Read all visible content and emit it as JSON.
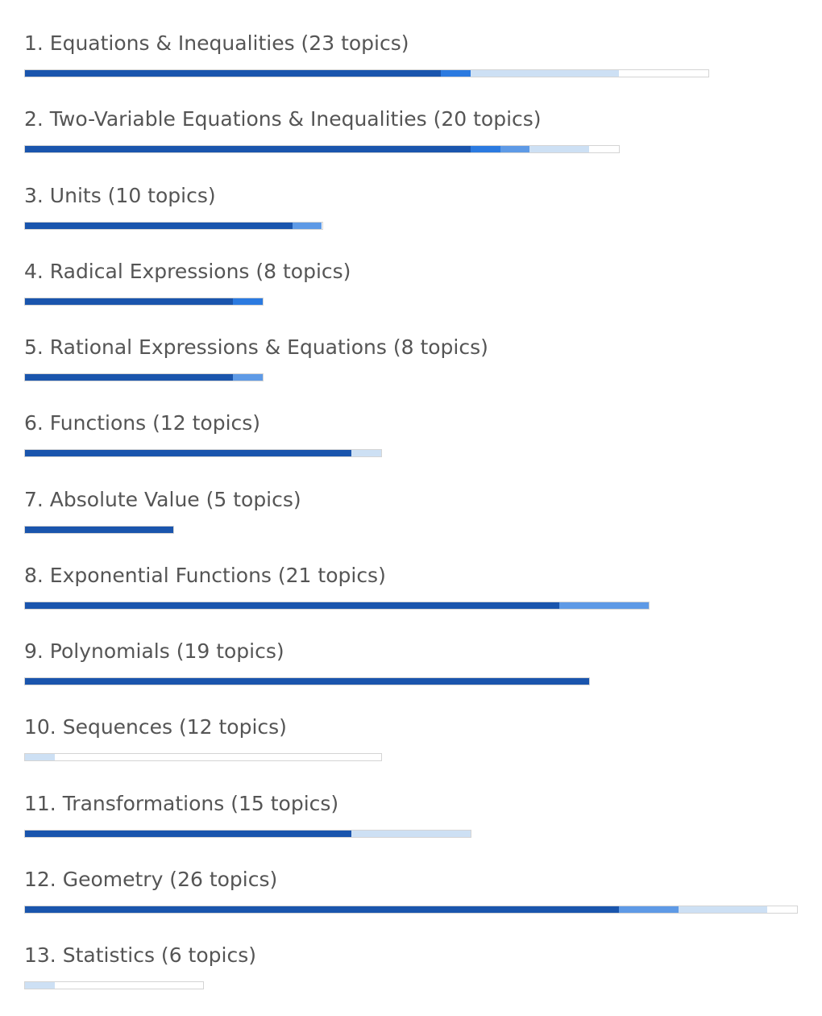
{
  "segment_colors": [
    "#1a55ad",
    "#2b7ae0",
    "#5e9ae6",
    "#cde0f4"
  ],
  "units": [
    {
      "label": "1. Equations & Inequalities (23 topics)",
      "topics": 23,
      "segments": [
        14,
        1,
        0,
        5
      ]
    },
    {
      "label": "2. Two-Variable Equations & Inequalities (20 topics)",
      "topics": 20,
      "segments": [
        15,
        1,
        1,
        2
      ]
    },
    {
      "label": "3. Units (10 topics)",
      "topics": 10,
      "segments": [
        9,
        0,
        1,
        0
      ]
    },
    {
      "label": "4. Radical Expressions (8 topics)",
      "topics": 8,
      "segments": [
        7,
        1,
        0,
        0
      ]
    },
    {
      "label": "5. Rational Expressions & Equations (8 topics)",
      "topics": 8,
      "segments": [
        7,
        0,
        1,
        0
      ]
    },
    {
      "label": "6. Functions (12 topics)",
      "topics": 12,
      "segments": [
        11,
        0,
        0,
        1
      ]
    },
    {
      "label": "7. Absolute Value (5 topics)",
      "topics": 5,
      "segments": [
        5,
        0,
        0,
        0
      ]
    },
    {
      "label": "8. Exponential Functions (21 topics)",
      "topics": 21,
      "segments": [
        18,
        0,
        3,
        0
      ]
    },
    {
      "label": "9. Polynomials (19 topics)",
      "topics": 19,
      "segments": [
        19,
        0,
        0,
        0
      ]
    },
    {
      "label": "10. Sequences (12 topics)",
      "topics": 12,
      "segments": [
        0,
        0,
        0,
        1
      ]
    },
    {
      "label": "11. Transformations (15 topics)",
      "topics": 15,
      "segments": [
        11,
        0,
        0,
        4
      ]
    },
    {
      "label": "12. Geometry (26 topics)",
      "topics": 26,
      "segments": [
        20,
        0,
        2,
        3
      ]
    },
    {
      "label": "13. Statistics (6 topics)",
      "topics": 6,
      "segments": [
        0,
        0,
        0,
        1
      ]
    }
  ]
}
